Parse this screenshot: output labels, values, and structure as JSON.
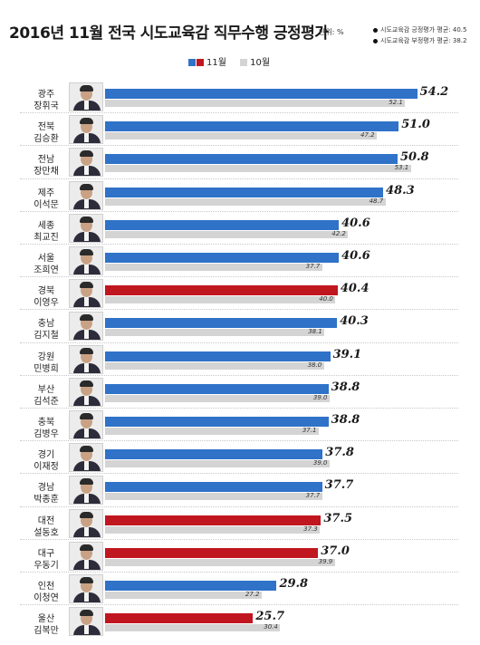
{
  "header": {
    "title": "2016년 11월 전국 시도교육감 직무수행 긍정평가",
    "unit": "단위: %",
    "notes": [
      "시도교육감 긍정평가 평균: 40.5",
      "시도교육감 부정평가 평균: 38.2"
    ]
  },
  "colors": {
    "blue": "#2f72c8",
    "red": "#c0161f",
    "prev": "#d4d4d4"
  },
  "chart_data": {
    "type": "bar",
    "orientation": "horizontal",
    "title": "2016년 11월 전국 시도교육감 직무수행 긍정평가",
    "unit": "단위: %",
    "legend": {
      "position": "top-center",
      "entries": [
        "11월",
        "10월"
      ]
    },
    "xlim": [
      0,
      56
    ],
    "grid": false,
    "categories": [
      {
        "region": "광주",
        "name": "장휘국",
        "nov": 54.2,
        "oct": 52.1,
        "color": "blue"
      },
      {
        "region": "전북",
        "name": "김승환",
        "nov": 51.0,
        "oct": 47.2,
        "color": "blue"
      },
      {
        "region": "전남",
        "name": "장만채",
        "nov": 50.8,
        "oct": 53.1,
        "color": "blue"
      },
      {
        "region": "제주",
        "name": "이석문",
        "nov": 48.3,
        "oct": 48.7,
        "color": "blue"
      },
      {
        "region": "세종",
        "name": "최교진",
        "nov": 40.6,
        "oct": 42.2,
        "color": "blue"
      },
      {
        "region": "서울",
        "name": "조희연",
        "nov": 40.6,
        "oct": 37.7,
        "color": "blue"
      },
      {
        "region": "경북",
        "name": "이영우",
        "nov": 40.4,
        "oct": 40.0,
        "color": "red"
      },
      {
        "region": "충남",
        "name": "김지철",
        "nov": 40.3,
        "oct": 38.1,
        "color": "blue"
      },
      {
        "region": "강원",
        "name": "민병희",
        "nov": 39.1,
        "oct": 38.0,
        "color": "blue"
      },
      {
        "region": "부산",
        "name": "김석준",
        "nov": 38.8,
        "oct": 39.0,
        "color": "blue"
      },
      {
        "region": "충북",
        "name": "김병우",
        "nov": 38.8,
        "oct": 37.1,
        "color": "blue"
      },
      {
        "region": "경기",
        "name": "이재정",
        "nov": 37.8,
        "oct": 39.0,
        "color": "blue"
      },
      {
        "region": "경남",
        "name": "박종훈",
        "nov": 37.7,
        "oct": 37.7,
        "color": "blue"
      },
      {
        "region": "대전",
        "name": "설동호",
        "nov": 37.5,
        "oct": 37.3,
        "color": "red"
      },
      {
        "region": "대구",
        "name": "우동기",
        "nov": 37.0,
        "oct": 39.9,
        "color": "red"
      },
      {
        "region": "인천",
        "name": "이청연",
        "nov": 29.8,
        "oct": 27.2,
        "color": "blue"
      },
      {
        "region": "울산",
        "name": "김복만",
        "nov": 25.7,
        "oct": 30.4,
        "color": "red"
      }
    ]
  }
}
